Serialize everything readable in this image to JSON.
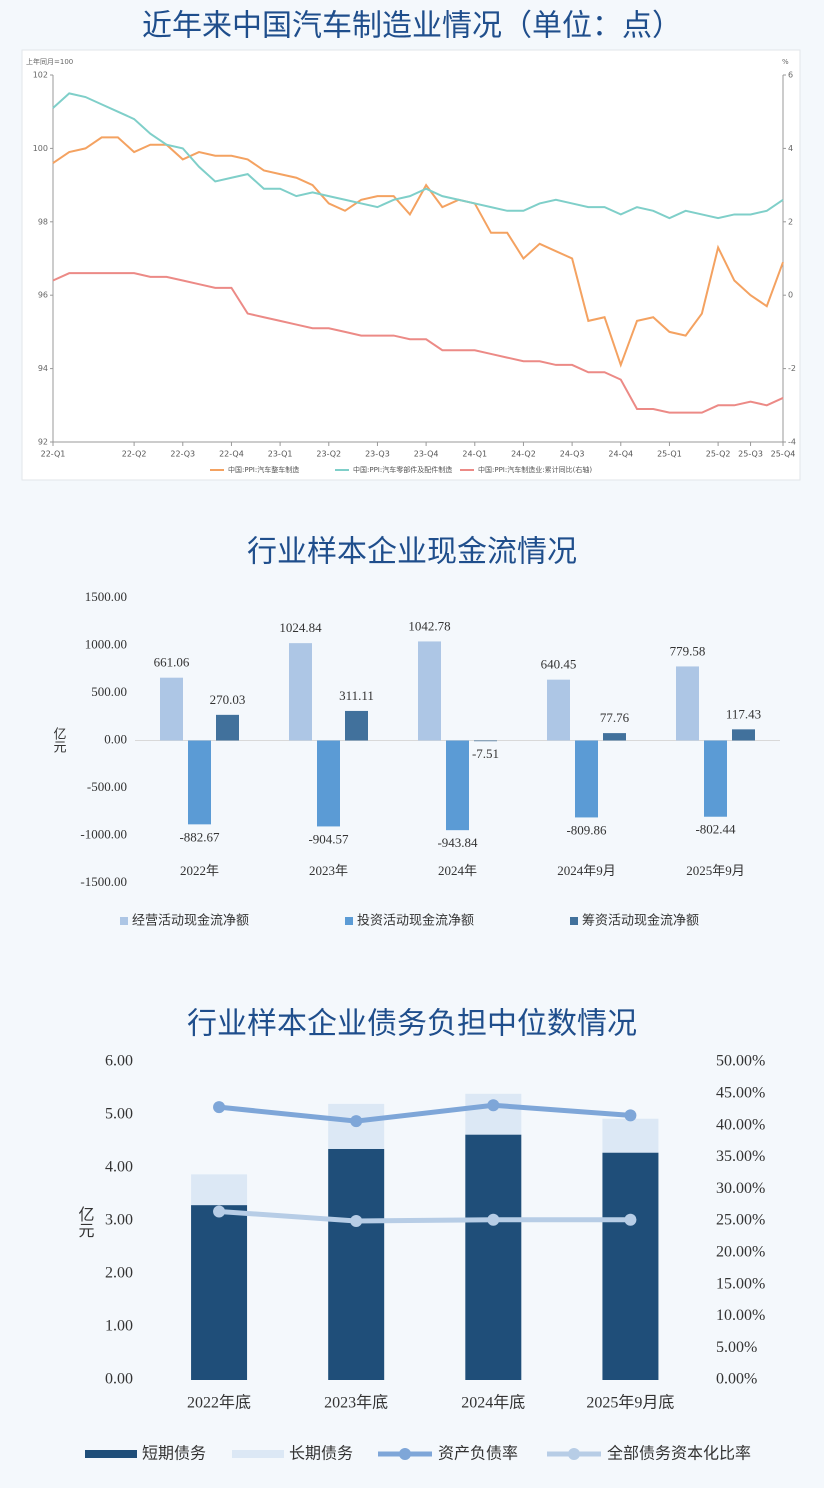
{
  "chart_data": [
    {
      "type": "line",
      "title": "近年来中国汽车制造业情况（单位：点）",
      "ylabel": "上年同月=100",
      "y2label": "%",
      "categories": [
        "22-Q1",
        null,
        null,
        null,
        null,
        "22-Q2",
        null,
        null,
        "22-Q3",
        null,
        null,
        "22-Q4",
        null,
        null,
        "23-Q1",
        null,
        null,
        "23-Q2",
        null,
        null,
        "23-Q3",
        null,
        null,
        "23-Q4",
        null,
        null,
        "24-Q1",
        null,
        null,
        "24-Q2",
        null,
        null,
        "24-Q3",
        null,
        null,
        "24-Q4",
        null,
        null,
        "25-Q1",
        null,
        null,
        "25-Q2",
        null,
        "25-Q3",
        null,
        "25-Q4"
      ],
      "ylim": [
        92,
        102
      ],
      "yticks": [
        92,
        94,
        96,
        98,
        100,
        102
      ],
      "y2lim": [
        -4,
        6
      ],
      "y2ticks": [
        -4,
        -2,
        0,
        2,
        4,
        6
      ],
      "series": [
        {
          "name": "中国:PPI:汽车整车制造",
          "color": "#f4a261",
          "values": [
            99.6,
            99.9,
            100.0,
            100.3,
            100.3,
            99.9,
            100.1,
            100.1,
            99.7,
            99.9,
            99.8,
            99.8,
            99.7,
            99.4,
            99.3,
            99.2,
            99.0,
            98.5,
            98.3,
            98.6,
            98.7,
            98.7,
            98.2,
            99.0,
            98.4,
            98.6,
            98.5,
            97.7,
            97.7,
            97.0,
            97.4,
            97.2,
            97.0,
            95.3,
            95.4,
            94.1,
            95.3,
            95.4,
            95.0,
            94.9,
            95.5,
            97.3,
            96.4,
            96.0,
            95.7,
            96.9
          ]
        },
        {
          "name": "中国:PPI:汽车零部件及配件制造",
          "color": "#7fcfc9",
          "values": [
            101.1,
            101.5,
            101.4,
            101.2,
            101.0,
            100.8,
            100.4,
            100.1,
            100.0,
            99.5,
            99.1,
            99.2,
            99.3,
            98.9,
            98.9,
            98.7,
            98.8,
            98.7,
            98.6,
            98.5,
            98.4,
            98.6,
            98.7,
            98.9,
            98.7,
            98.6,
            98.5,
            98.4,
            98.3,
            98.3,
            98.5,
            98.6,
            98.5,
            98.4,
            98.4,
            98.2,
            98.4,
            98.3,
            98.1,
            98.3,
            98.2,
            98.1,
            98.2,
            98.2,
            98.3,
            98.6
          ]
        },
        {
          "name": "中国:PPI:汽车制造业:累计同比(右轴)",
          "color": "#ec8a86",
          "axis": "y2",
          "values": [
            0.4,
            0.6,
            0.6,
            0.6,
            0.6,
            0.6,
            0.5,
            0.5,
            0.4,
            0.3,
            0.2,
            0.2,
            -0.5,
            -0.6,
            -0.7,
            -0.8,
            -0.9,
            -0.9,
            -1.0,
            -1.1,
            -1.1,
            -1.1,
            -1.2,
            -1.2,
            -1.5,
            -1.5,
            -1.5,
            -1.6,
            -1.7,
            -1.8,
            -1.8,
            -1.9,
            -1.9,
            -2.1,
            -2.1,
            -2.3,
            -3.1,
            -3.1,
            -3.2,
            -3.2,
            -3.2,
            -3.0,
            -3.0,
            -2.9,
            -3.0,
            -2.8
          ]
        }
      ]
    },
    {
      "type": "bar",
      "title": "行业样本企业现金流情况",
      "ylabel": "亿元",
      "categories": [
        "2022年",
        "2023年",
        "2024年",
        "2024年9月",
        "2025年9月"
      ],
      "ylim": [
        -1500,
        1500
      ],
      "yticks": [
        {
          "value": -1500,
          "label": "-1500.00"
        },
        {
          "value": -1000,
          "label": "-1000.00"
        },
        {
          "value": -500,
          "label": "-500.00"
        },
        {
          "value": 0,
          "label": "0.00"
        },
        {
          "value": 500,
          "label": "500.00"
        },
        {
          "value": 1000,
          "label": "1000.00"
        },
        {
          "value": 1500,
          "label": "1500.00"
        }
      ],
      "series": [
        {
          "name": "经营活动现金流净额",
          "color": "#adc6e5",
          "values": [
            661.06,
            1024.84,
            1042.78,
            640.45,
            779.58
          ]
        },
        {
          "name": "投资活动现金流净额",
          "color": "#5b9bd5",
          "values": [
            -882.67,
            -904.57,
            -943.84,
            -809.86,
            -802.44
          ]
        },
        {
          "name": "筹资活动现金流净额",
          "color": "#41719c",
          "values": [
            270.03,
            311.11,
            -7.51,
            77.76,
            117.43
          ]
        }
      ]
    },
    {
      "type": "combo",
      "title": "行业样本企业债务负担中位数情况",
      "ylabel": "亿元",
      "categories": [
        "2022年底",
        "2023年底",
        "2024年底",
        "2025年9月底"
      ],
      "ylim": [
        0,
        6
      ],
      "yticks": [
        {
          "value": 0,
          "label": "0.00"
        },
        {
          "value": 1,
          "label": "1.00"
        },
        {
          "value": 2,
          "label": "2.00"
        },
        {
          "value": 3,
          "label": "3.00"
        },
        {
          "value": 4,
          "label": "4.00"
        },
        {
          "value": 5,
          "label": "5.00"
        },
        {
          "value": 6,
          "label": "6.00"
        }
      ],
      "y2lim": [
        0,
        50
      ],
      "y2ticks": [
        {
          "value": 0,
          "label": "0.00%"
        },
        {
          "value": 5,
          "label": "5.00%"
        },
        {
          "value": 10,
          "label": "10.00%"
        },
        {
          "value": 15,
          "label": "15.00%"
        },
        {
          "value": 20,
          "label": "20.00%"
        },
        {
          "value": 25,
          "label": "25.00%"
        },
        {
          "value": 30,
          "label": "30.00%"
        },
        {
          "value": 35,
          "label": "35.00%"
        },
        {
          "value": 40,
          "label": "40.00%"
        },
        {
          "value": 45,
          "label": "45.00%"
        },
        {
          "value": 50,
          "label": "50.00%"
        }
      ],
      "series": [
        {
          "name": "短期债务",
          "type": "bar",
          "color": "#1f4e79",
          "values": [
            3.3,
            4.36,
            4.63,
            4.29
          ]
        },
        {
          "name": "长期债务",
          "type": "bar",
          "color": "#dce8f5",
          "values": [
            0.58,
            0.85,
            0.77,
            0.64
          ]
        },
        {
          "name": "资产负债率",
          "type": "line",
          "axis": "y2",
          "color": "#7ea6d8",
          "values": [
            42.9,
            40.7,
            43.2,
            41.6
          ]
        },
        {
          "name": "全部债务资本化比率",
          "type": "line",
          "axis": "y2",
          "color": "#b7cde6",
          "values": [
            26.5,
            25.0,
            25.2,
            25.2
          ]
        }
      ]
    }
  ]
}
